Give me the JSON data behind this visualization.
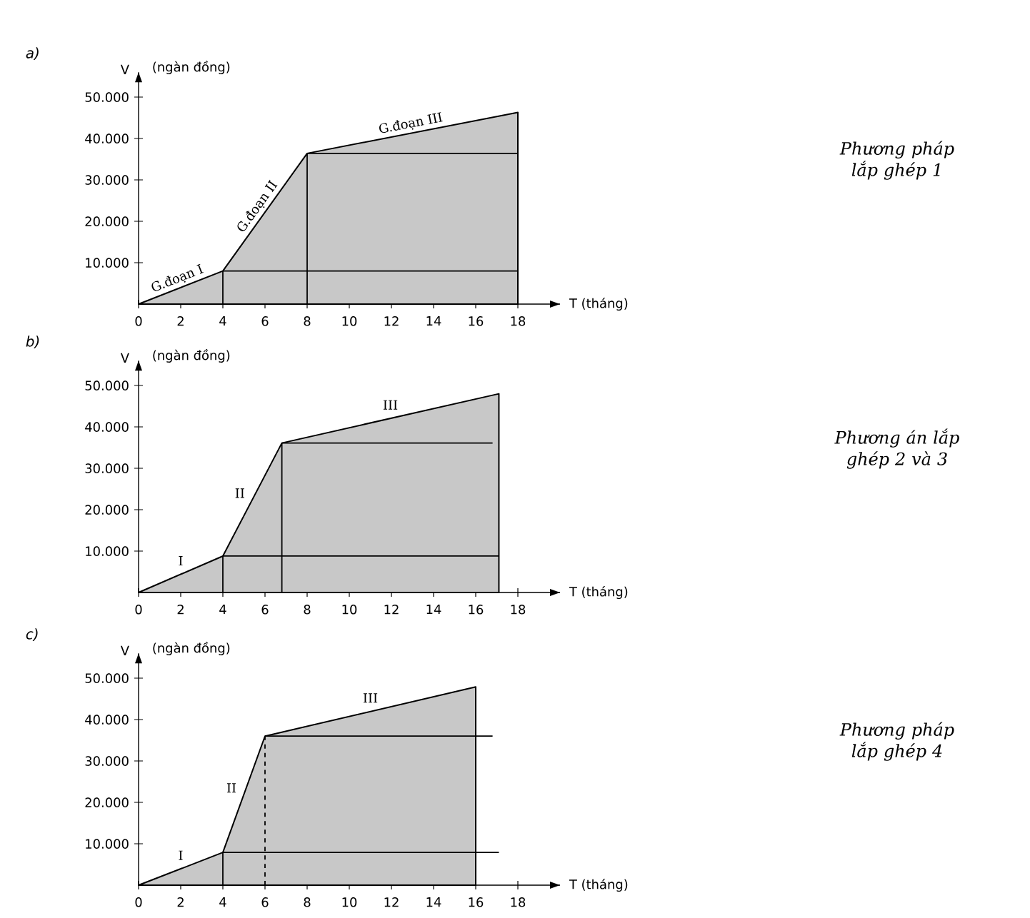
{
  "chart_data": [
    {
      "type": "line",
      "title": "a)",
      "xlabel": "T (tháng)",
      "ylabel": "V",
      "xlim": [
        0,
        20
      ],
      "ylim": [
        0,
        56000
      ],
      "xticks": [
        0,
        2,
        4,
        6,
        8,
        10,
        12,
        14,
        16,
        18
      ],
      "yticks": [
        {
          "value": 10000,
          "label": "10.000"
        },
        {
          "value": 20000,
          "label": "20.000"
        },
        {
          "value": 30000,
          "label": "30.000"
        },
        {
          "value": 40000,
          "label": "40.000"
        },
        {
          "value": 50000,
          "label": "50.000"
        }
      ],
      "annotations": [
        "(ngàn đồng)",
        "Phương pháp lắp ghép 1",
        "G.đoạn I",
        "G.đoạn II",
        "G.đoạn III"
      ],
      "series": [
        {
          "type": "area",
          "color": "#c8c8c8",
          "x": [
            0,
            4,
            8,
            18
          ],
          "values": [
            0,
            8000,
            36400,
            46300
          ]
        },
        {
          "color": "#000000",
          "x": [
            4,
            18
          ],
          "values": [
            8000,
            8000
          ]
        },
        {
          "color": "#000000",
          "x": [
            8,
            18
          ],
          "values": [
            36400,
            36400
          ]
        },
        {
          "color": "#000000",
          "x": [
            4,
            4
          ],
          "values": [
            0,
            8000
          ]
        },
        {
          "color": "#000000",
          "x": [
            8,
            8
          ],
          "values": [
            0,
            36400
          ]
        }
      ]
    },
    {
      "type": "line",
      "title": "b)",
      "xlabel": "T (tháng)",
      "ylabel": "V",
      "xlim": [
        0,
        20
      ],
      "ylim": [
        0,
        56000
      ],
      "xticks": [
        0,
        2,
        4,
        6,
        8,
        10,
        12,
        14,
        16,
        18
      ],
      "yticks": [
        {
          "value": 10000,
          "label": "10.000"
        },
        {
          "value": 20000,
          "label": "20.000"
        },
        {
          "value": 30000,
          "label": "30.000"
        },
        {
          "value": 40000,
          "label": "40.000"
        },
        {
          "value": 50000,
          "label": "50.000"
        }
      ],
      "annotations": [
        "(ngàn đồng)",
        "Phương án lắp ghép 2 và 3",
        "I",
        "II",
        "III"
      ],
      "series": [
        {
          "type": "area",
          "color": "#c8c8c8",
          "x": [
            0,
            4,
            6.8,
            17.1
          ],
          "values": [
            0,
            8800,
            36100,
            48000
          ]
        },
        {
          "color": "#000000",
          "x": [
            4,
            17.1
          ],
          "values": [
            8800,
            8800
          ]
        },
        {
          "color": "#000000",
          "x": [
            6.8,
            16.8
          ],
          "values": [
            36100,
            36100
          ]
        },
        {
          "color": "#000000",
          "x": [
            4,
            4
          ],
          "values": [
            0,
            8800
          ]
        },
        {
          "color": "#000000",
          "x": [
            6.8,
            6.8
          ],
          "values": [
            0,
            36100
          ]
        }
      ]
    },
    {
      "type": "line",
      "title": "c)",
      "xlabel": "T (tháng)",
      "ylabel": "V",
      "xlim": [
        0,
        20
      ],
      "ylim": [
        0,
        56000
      ],
      "xticks": [
        0,
        2,
        4,
        6,
        8,
        10,
        12,
        14,
        16,
        18
      ],
      "yticks": [
        {
          "value": 10000,
          "label": "10.000"
        },
        {
          "value": 20000,
          "label": "20.000"
        },
        {
          "value": 30000,
          "label": "30.000"
        },
        {
          "value": 40000,
          "label": "40.000"
        },
        {
          "value": 50000,
          "label": "50.000"
        }
      ],
      "annotations": [
        "(ngàn đồng)",
        "Phương pháp lắp ghép 4",
        "I",
        "II",
        "III"
      ],
      "series": [
        {
          "type": "area",
          "color": "#c8c8c8",
          "x": [
            0,
            4,
            6,
            16
          ],
          "values": [
            0,
            7900,
            36000,
            47900
          ]
        },
        {
          "color": "#000000",
          "x": [
            4,
            17.1
          ],
          "values": [
            7900,
            7900
          ]
        },
        {
          "color": "#000000",
          "x": [
            6,
            16.8
          ],
          "values": [
            36000,
            36000
          ]
        },
        {
          "color": "#000000",
          "x": [
            4,
            4
          ],
          "values": [
            0,
            7900
          ]
        },
        {
          "color": "#000000",
          "line_style": "dashed",
          "x": [
            6,
            6
          ],
          "values": [
            0,
            36000
          ]
        }
      ]
    }
  ]
}
